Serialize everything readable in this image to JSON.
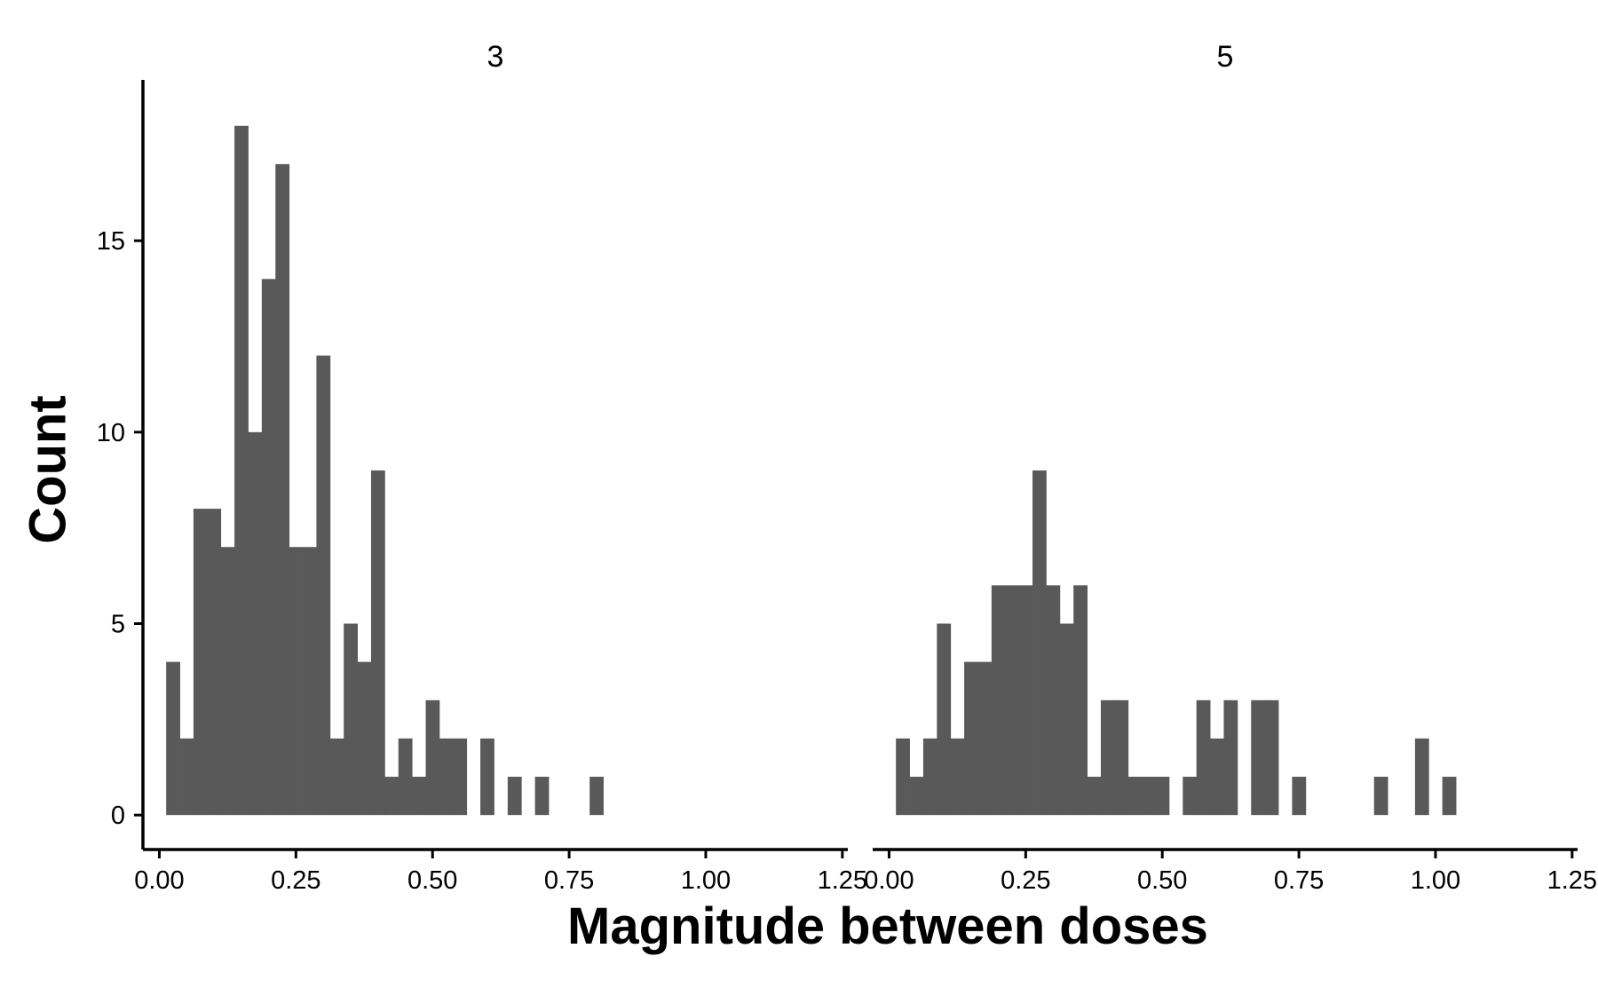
{
  "chart_data": {
    "type": "bar",
    "chart_subtype": "faceted-histogram",
    "xlabel": "Magnitude between doses",
    "ylabel": "Count",
    "bin_width": 0.025,
    "xlim": [
      -0.03,
      1.26
    ],
    "ylim": [
      -0.9,
      19.2
    ],
    "x_ticks": [
      "0.00",
      "0.25",
      "0.50",
      "0.75",
      "1.00",
      "1.25"
    ],
    "x_tick_values": [
      0,
      0.25,
      0.5,
      0.75,
      1.0,
      1.25
    ],
    "y_ticks": [
      "0",
      "5",
      "10",
      "15"
    ],
    "y_tick_values": [
      0,
      5,
      10,
      15
    ],
    "grid": false,
    "legend": "none",
    "colors": {
      "bar": "#595959",
      "axis": "#000000",
      "background": "#ffffff"
    },
    "panels": [
      {
        "label": "3",
        "bins": [
          {
            "x": 0.025,
            "count": 4
          },
          {
            "x": 0.05,
            "count": 2
          },
          {
            "x": 0.075,
            "count": 8
          },
          {
            "x": 0.1,
            "count": 8
          },
          {
            "x": 0.125,
            "count": 7
          },
          {
            "x": 0.15,
            "count": 18
          },
          {
            "x": 0.175,
            "count": 10
          },
          {
            "x": 0.2,
            "count": 14
          },
          {
            "x": 0.225,
            "count": 17
          },
          {
            "x": 0.25,
            "count": 7
          },
          {
            "x": 0.275,
            "count": 7
          },
          {
            "x": 0.3,
            "count": 12
          },
          {
            "x": 0.325,
            "count": 2
          },
          {
            "x": 0.35,
            "count": 5
          },
          {
            "x": 0.375,
            "count": 4
          },
          {
            "x": 0.4,
            "count": 9
          },
          {
            "x": 0.425,
            "count": 1
          },
          {
            "x": 0.45,
            "count": 2
          },
          {
            "x": 0.475,
            "count": 1
          },
          {
            "x": 0.5,
            "count": 3
          },
          {
            "x": 0.525,
            "count": 2
          },
          {
            "x": 0.55,
            "count": 2
          },
          {
            "x": 0.6,
            "count": 2
          },
          {
            "x": 0.65,
            "count": 1
          },
          {
            "x": 0.7,
            "count": 1
          },
          {
            "x": 0.8,
            "count": 1
          }
        ]
      },
      {
        "label": "5",
        "bins": [
          {
            "x": 0.025,
            "count": 2
          },
          {
            "x": 0.05,
            "count": 1
          },
          {
            "x": 0.075,
            "count": 2
          },
          {
            "x": 0.1,
            "count": 5
          },
          {
            "x": 0.125,
            "count": 2
          },
          {
            "x": 0.15,
            "count": 4
          },
          {
            "x": 0.175,
            "count": 4
          },
          {
            "x": 0.2,
            "count": 6
          },
          {
            "x": 0.225,
            "count": 6
          },
          {
            "x": 0.25,
            "count": 6
          },
          {
            "x": 0.275,
            "count": 9
          },
          {
            "x": 0.3,
            "count": 6
          },
          {
            "x": 0.325,
            "count": 5
          },
          {
            "x": 0.35,
            "count": 6
          },
          {
            "x": 0.375,
            "count": 1
          },
          {
            "x": 0.4,
            "count": 3
          },
          {
            "x": 0.425,
            "count": 3
          },
          {
            "x": 0.45,
            "count": 1
          },
          {
            "x": 0.475,
            "count": 1
          },
          {
            "x": 0.5,
            "count": 1
          },
          {
            "x": 0.55,
            "count": 1
          },
          {
            "x": 0.575,
            "count": 3
          },
          {
            "x": 0.6,
            "count": 2
          },
          {
            "x": 0.625,
            "count": 3
          },
          {
            "x": 0.675,
            "count": 3
          },
          {
            "x": 0.7,
            "count": 3
          },
          {
            "x": 0.75,
            "count": 1
          },
          {
            "x": 0.9,
            "count": 1
          },
          {
            "x": 0.975,
            "count": 2
          },
          {
            "x": 1.025,
            "count": 1
          }
        ]
      }
    ]
  }
}
